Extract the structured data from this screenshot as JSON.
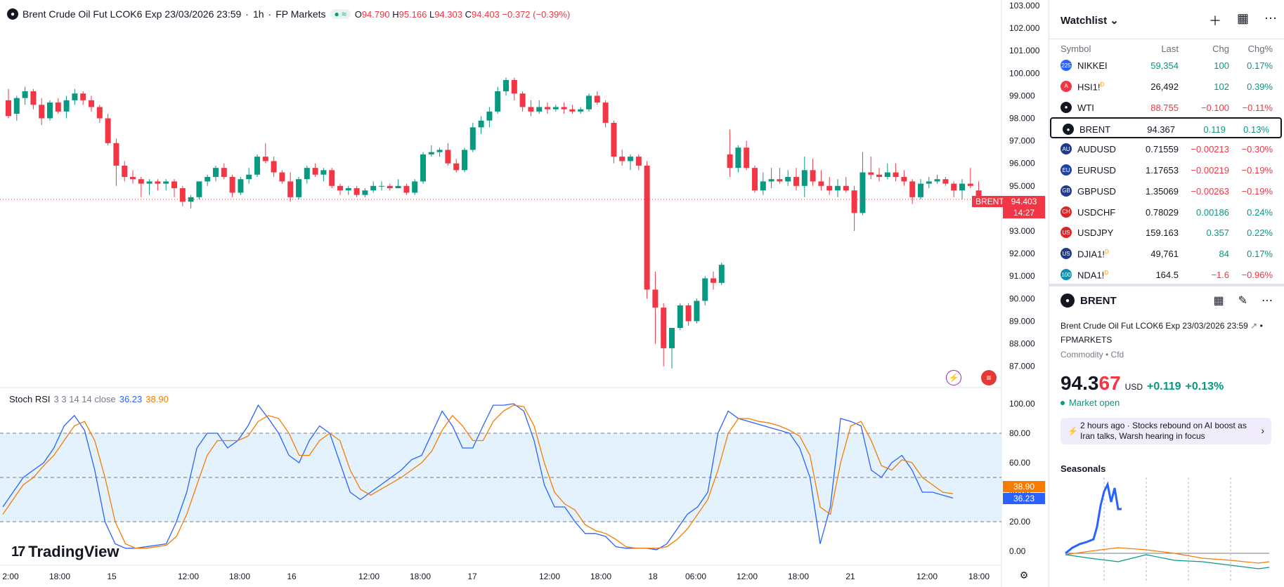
{
  "legend": {
    "icon": "drop-icon",
    "title": "Brent Crude Oil Fut LCOK6 Exp 23/03/2026 23:59",
    "interval": "1h",
    "broker": "FP Markets",
    "o_label": "O",
    "o_value": "94.790",
    "h_label": "H",
    "h_value": "95.166",
    "l_label": "L",
    "l_value": "94.303",
    "c_label": "C",
    "c_value": "94.403",
    "change": "−0.372 (−0.39%)"
  },
  "price_axis": [
    "103.000",
    "102.000",
    "101.000",
    "100.000",
    "99.000",
    "98.000",
    "97.000",
    "96.000",
    "95.000",
    "94.000",
    "93.000",
    "92.000",
    "91.000",
    "90.000",
    "89.000",
    "88.000",
    "87.000"
  ],
  "last_price_tag": {
    "symbol": "BRENT",
    "price": "94.403",
    "countdown": "14:27"
  },
  "stoch": {
    "name": "Stoch RSI",
    "params": "3 3 14 14 close",
    "k_value": "36.23",
    "d_value": "38.90",
    "axis": [
      "100.00",
      "80.00",
      "60.00",
      "40.00",
      "20.00",
      "0.00"
    ]
  },
  "time_axis": [
    "2:00",
    "18:00",
    "15",
    "12:00",
    "18:00",
    "16",
    "12:00",
    "18:00",
    "17",
    "12:00",
    "18:00",
    "18",
    "06:00",
    "12:00",
    "18:00",
    "21",
    "12:00",
    "18:00"
  ],
  "branding": {
    "logo_text": "TradingView",
    "logo_mark": "17"
  },
  "colors": {
    "up": "#089981",
    "down": "#f23645",
    "k_line": "#2962ff",
    "d_line": "#f57c00",
    "band": "#e3f2fd"
  },
  "chart_data": [
    {
      "type": "candlestick",
      "title": "Brent Crude Oil Fut LCOK6 Exp 23/03/2026 23:59",
      "ylim": [
        86.5,
        103.0
      ],
      "grid": false,
      "candles_ohlc": [
        [
          98.8,
          99.3,
          98.0,
          98.1
        ],
        [
          98.2,
          99.0,
          97.9,
          98.9
        ],
        [
          98.9,
          99.4,
          98.6,
          99.2
        ],
        [
          99.2,
          99.3,
          98.4,
          98.6
        ],
        [
          98.6,
          98.9,
          97.7,
          98.0
        ],
        [
          98.0,
          98.8,
          97.9,
          98.7
        ],
        [
          98.7,
          98.9,
          98.2,
          98.3
        ],
        [
          98.3,
          99.0,
          98.0,
          98.8
        ],
        [
          98.8,
          99.3,
          98.6,
          99.1
        ],
        [
          99.1,
          99.2,
          98.6,
          98.8
        ],
        [
          98.8,
          99.0,
          98.3,
          98.5
        ],
        [
          98.5,
          98.6,
          97.8,
          98.0
        ],
        [
          98.0,
          98.2,
          96.8,
          96.9
        ],
        [
          96.9,
          97.1,
          95.0,
          95.9
        ],
        [
          95.9,
          96.1,
          95.2,
          95.4
        ],
        [
          95.4,
          95.7,
          95.1,
          95.3
        ],
        [
          95.3,
          95.4,
          94.5,
          95.1
        ],
        [
          95.1,
          95.3,
          94.6,
          95.2
        ],
        [
          95.2,
          95.3,
          94.8,
          95.1
        ],
        [
          95.1,
          95.3,
          94.8,
          95.2
        ],
        [
          95.2,
          95.3,
          94.5,
          94.9
        ],
        [
          94.9,
          95.0,
          94.1,
          94.3
        ],
        [
          94.3,
          94.6,
          94.0,
          94.5
        ],
        [
          94.5,
          95.2,
          94.4,
          95.2
        ],
        [
          95.2,
          95.5,
          95.0,
          95.4
        ],
        [
          95.4,
          95.9,
          95.2,
          95.8
        ],
        [
          95.8,
          96.0,
          95.3,
          95.4
        ],
        [
          95.4,
          95.5,
          94.5,
          94.7
        ],
        [
          94.7,
          95.4,
          94.6,
          95.3
        ],
        [
          95.3,
          95.8,
          95.1,
          95.5
        ],
        [
          95.5,
          96.4,
          95.4,
          96.3
        ],
        [
          96.3,
          96.9,
          96.0,
          96.1
        ],
        [
          96.1,
          96.3,
          95.4,
          95.6
        ],
        [
          95.6,
          95.7,
          95.1,
          95.2
        ],
        [
          95.2,
          95.6,
          94.3,
          94.5
        ],
        [
          94.5,
          95.4,
          94.4,
          95.3
        ],
        [
          95.3,
          95.9,
          95.1,
          95.8
        ],
        [
          95.8,
          96.0,
          95.4,
          95.5
        ],
        [
          95.5,
          95.8,
          95.2,
          95.7
        ],
        [
          95.7,
          95.8,
          94.9,
          95.0
        ],
        [
          95.0,
          95.1,
          94.6,
          94.8
        ],
        [
          94.8,
          95.0,
          94.6,
          94.9
        ],
        [
          94.9,
          95.0,
          94.5,
          94.6
        ],
        [
          94.6,
          94.9,
          94.5,
          94.8
        ],
        [
          94.8,
          95.2,
          94.7,
          95.0
        ],
        [
          95.0,
          95.2,
          94.8,
          95.0
        ],
        [
          95.0,
          95.1,
          94.8,
          94.9
        ],
        [
          94.9,
          95.3,
          94.9,
          95.0
        ],
        [
          95.0,
          95.1,
          94.6,
          94.7
        ],
        [
          94.7,
          95.3,
          94.6,
          95.2
        ],
        [
          95.2,
          96.5,
          95.1,
          96.4
        ],
        [
          96.4,
          96.8,
          96.3,
          96.5
        ],
        [
          96.5,
          96.7,
          96.3,
          96.6
        ],
        [
          96.6,
          96.9,
          95.9,
          96.0
        ],
        [
          96.0,
          96.2,
          95.6,
          95.7
        ],
        [
          95.7,
          96.7,
          95.6,
          96.6
        ],
        [
          96.6,
          97.8,
          96.5,
          97.6
        ],
        [
          97.6,
          98.1,
          97.3,
          97.9
        ],
        [
          97.9,
          98.5,
          97.6,
          98.3
        ],
        [
          98.3,
          99.4,
          98.2,
          99.2
        ],
        [
          99.2,
          99.8,
          99.0,
          99.7
        ],
        [
          99.7,
          99.8,
          98.8,
          99.1
        ],
        [
          99.1,
          99.2,
          98.3,
          98.5
        ],
        [
          98.5,
          98.8,
          98.1,
          98.3
        ],
        [
          98.3,
          98.8,
          98.2,
          98.5
        ],
        [
          98.5,
          98.7,
          98.2,
          98.4
        ],
        [
          98.4,
          98.6,
          98.3,
          98.5
        ],
        [
          98.5,
          98.7,
          98.2,
          98.4
        ],
        [
          98.4,
          98.6,
          98.2,
          98.3
        ],
        [
          98.3,
          98.5,
          98.2,
          98.4
        ],
        [
          98.4,
          99.1,
          98.3,
          99.0
        ],
        [
          99.0,
          99.2,
          98.6,
          98.7
        ],
        [
          98.7,
          98.8,
          97.6,
          97.8
        ],
        [
          97.8,
          97.9,
          96.0,
          96.3
        ],
        [
          96.3,
          96.6,
          95.9,
          96.1
        ],
        [
          96.1,
          96.4,
          95.7,
          96.3
        ],
        [
          96.3,
          96.4,
          95.7,
          95.9
        ],
        [
          95.9,
          96.1,
          90.0,
          90.4
        ],
        [
          90.4,
          91.2,
          88.0,
          89.6
        ],
        [
          89.6,
          89.8,
          87.0,
          87.8
        ],
        [
          87.8,
          88.7,
          86.9,
          88.7
        ],
        [
          88.7,
          89.8,
          88.6,
          89.7
        ],
        [
          89.7,
          89.8,
          88.8,
          89.0
        ],
        [
          89.0,
          90.0,
          88.9,
          89.9
        ],
        [
          89.9,
          91.0,
          89.7,
          90.9
        ],
        [
          90.9,
          91.2,
          90.4,
          90.7
        ],
        [
          90.7,
          91.6,
          90.6,
          91.5
        ],
        [
          96.4,
          97.5,
          95.4,
          95.8
        ],
        [
          95.8,
          96.8,
          95.6,
          96.7
        ],
        [
          96.7,
          97.0,
          95.7,
          95.8
        ],
        [
          95.8,
          95.9,
          94.7,
          94.8
        ],
        [
          94.8,
          95.6,
          94.6,
          95.2
        ],
        [
          95.2,
          95.8,
          94.9,
          95.3
        ],
        [
          95.3,
          95.8,
          95.1,
          95.2
        ],
        [
          95.2,
          95.7,
          95.0,
          95.4
        ],
        [
          95.4,
          95.8,
          94.8,
          95.0
        ],
        [
          95.0,
          96.3,
          94.5,
          95.7
        ],
        [
          95.7,
          96.2,
          95.0,
          95.2
        ],
        [
          95.2,
          95.7,
          94.8,
          95.0
        ],
        [
          95.0,
          95.4,
          94.6,
          94.8
        ],
        [
          94.8,
          95.3,
          94.5,
          95.0
        ],
        [
          95.0,
          95.4,
          94.7,
          94.8
        ],
        [
          94.8,
          95.0,
          93.0,
          93.8
        ],
        [
          93.8,
          96.5,
          93.7,
          95.6
        ],
        [
          95.6,
          96.3,
          95.3,
          95.5
        ],
        [
          95.5,
          95.8,
          95.2,
          95.4
        ],
        [
          95.4,
          96.0,
          95.3,
          95.6
        ],
        [
          95.6,
          96.0,
          95.2,
          95.4
        ],
        [
          95.4,
          95.7,
          95.0,
          95.2
        ],
        [
          95.2,
          95.3,
          94.2,
          94.5
        ],
        [
          94.5,
          95.3,
          94.4,
          95.1
        ],
        [
          95.1,
          95.4,
          94.9,
          95.2
        ],
        [
          95.2,
          95.5,
          95.1,
          95.3
        ],
        [
          95.3,
          95.4,
          95.0,
          95.1
        ],
        [
          95.1,
          95.2,
          94.5,
          94.8
        ],
        [
          94.8,
          95.3,
          94.4,
          95.1
        ],
        [
          95.1,
          95.8,
          94.9,
          95.0
        ],
        [
          94.8,
          95.2,
          94.3,
          94.4
        ]
      ],
      "time_labels": [
        "2:00",
        "18:00",
        "15",
        "12:00",
        "18:00",
        "16",
        "12:00",
        "18:00",
        "17",
        "12:00",
        "18:00",
        "18",
        "06:00",
        "12:00",
        "18:00",
        "21",
        "12:00",
        "18:00"
      ],
      "last_price": 94.403
    },
    {
      "type": "line",
      "title": "Stoch RSI 3 3 14 14 close",
      "ylim": [
        0,
        100
      ],
      "series": [
        {
          "name": "K",
          "values": [
            30,
            40,
            50,
            55,
            60,
            70,
            85,
            92,
            82,
            55,
            20,
            5,
            2,
            2,
            3,
            4,
            5,
            20,
            40,
            70,
            80,
            80,
            70,
            75,
            85,
            99,
            90,
            80,
            65,
            60,
            75,
            85,
            80,
            60,
            40,
            35,
            40,
            45,
            50,
            55,
            62,
            65,
            80,
            95,
            85,
            70,
            70,
            85,
            99,
            99,
            100,
            95,
            75,
            45,
            30,
            30,
            20,
            12,
            12,
            10,
            3,
            2,
            2,
            2,
            1,
            5,
            15,
            25,
            30,
            40,
            80,
            95,
            90,
            88,
            86,
            84,
            82,
            80,
            70,
            50,
            5,
            30,
            90,
            88,
            85,
            55,
            50,
            60,
            65,
            55,
            40,
            40,
            38,
            36
          ]
        },
        {
          "name": "D",
          "values": [
            25,
            35,
            45,
            50,
            58,
            65,
            75,
            85,
            88,
            75,
            50,
            20,
            5,
            2,
            2,
            3,
            4,
            10,
            25,
            45,
            65,
            75,
            75,
            75,
            78,
            88,
            92,
            90,
            80,
            65,
            65,
            75,
            80,
            75,
            55,
            42,
            38,
            42,
            46,
            50,
            55,
            60,
            68,
            82,
            92,
            85,
            75,
            75,
            88,
            95,
            99,
            98,
            85,
            60,
            40,
            32,
            28,
            18,
            14,
            12,
            8,
            3,
            2,
            2,
            2,
            3,
            8,
            15,
            25,
            35,
            55,
            80,
            90,
            90,
            88,
            87,
            85,
            82,
            78,
            65,
            30,
            25,
            60,
            85,
            88,
            75,
            58,
            55,
            62,
            60,
            50,
            45,
            40,
            39
          ]
        }
      ],
      "reference_lines": [
        80,
        50,
        20
      ]
    }
  ],
  "watchlist": {
    "title": "Watchlist",
    "columns": {
      "symbol": "Symbol",
      "last": "Last",
      "chg": "Chg",
      "chgp": "Chg%"
    },
    "rows": [
      {
        "icon": "225",
        "icon_color": "#2962ff",
        "symbol": "NIKKEI",
        "sup": "",
        "last": "59,354",
        "last_color": "#089981",
        "chg": "100",
        "chgp": "0.17%",
        "dir": "up"
      },
      {
        "icon": "A",
        "icon_color": "#f23645",
        "symbol": "HSI1!",
        "sup": "D",
        "last": "26,492",
        "last_color": "#131722",
        "chg": "102",
        "chgp": "0.39%",
        "dir": "up"
      },
      {
        "icon": "●",
        "icon_color": "#131722",
        "symbol": "WTI",
        "sup": "",
        "last": "88.755",
        "last_color": "#f23645",
        "chg": "−0.100",
        "chgp": "−0.11%",
        "dir": "down"
      },
      {
        "icon": "●",
        "icon_color": "#131722",
        "symbol": "BRENT",
        "sup": "",
        "last": "94.367",
        "last_color": "#131722",
        "chg": "0.119",
        "chgp": "0.13%",
        "dir": "up",
        "selected": true
      },
      {
        "icon": "AU",
        "icon_color": "#1e3a8a",
        "symbol": "AUDUSD",
        "sup": "",
        "last": "0.71559",
        "last_color": "#131722",
        "chg": "−0.00213",
        "chgp": "−0.30%",
        "dir": "down"
      },
      {
        "icon": "EU",
        "icon_color": "#1e40af",
        "symbol": "EURUSD",
        "sup": "",
        "last": "1.17653",
        "last_color": "#131722",
        "chg": "−0.00219",
        "chgp": "−0.19%",
        "dir": "down"
      },
      {
        "icon": "GB",
        "icon_color": "#1e3a8a",
        "symbol": "GBPUSD",
        "sup": "",
        "last": "1.35069",
        "last_color": "#131722",
        "chg": "−0.00263",
        "chgp": "−0.19%",
        "dir": "down"
      },
      {
        "icon": "CH",
        "icon_color": "#dc2626",
        "symbol": "USDCHF",
        "sup": "",
        "last": "0.78029",
        "last_color": "#131722",
        "chg": "0.00186",
        "chgp": "0.24%",
        "dir": "up"
      },
      {
        "icon": "US",
        "icon_color": "#dc2626",
        "symbol": "USDJPY",
        "sup": "",
        "last": "159.163",
        "last_color": "#131722",
        "chg": "0.357",
        "chgp": "0.22%",
        "dir": "up"
      },
      {
        "icon": "US",
        "icon_color": "#1e3a8a",
        "symbol": "DJIA1!",
        "sup": "D",
        "last": "49,761",
        "last_color": "#131722",
        "chg": "84",
        "chgp": "0.17%",
        "dir": "up"
      },
      {
        "icon": "100",
        "icon_color": "#0891b2",
        "symbol": "NDA1!",
        "sup": "D",
        "last": "164.5",
        "last_color": "#131722",
        "chg": "−1.6",
        "chgp": "−0.96%",
        "dir": "down"
      }
    ]
  },
  "details": {
    "symbol": "BRENT",
    "name": "Brent Crude Oil Fut LCOK6 Exp 23/03/2026 23:59",
    "exchange": "FPMARKETS",
    "category": "Commodity • Cfd",
    "price_main": "94.3",
    "price_tail": "67",
    "currency": "USD",
    "change": "+0.119",
    "change_pct": "+0.13%",
    "market_status": "Market open",
    "news_time": "2 hours ago",
    "news_text": "Stocks rebound on AI boost as Iran talks, Warsh hearing in focus",
    "seasonals_title": "Seasonals"
  }
}
